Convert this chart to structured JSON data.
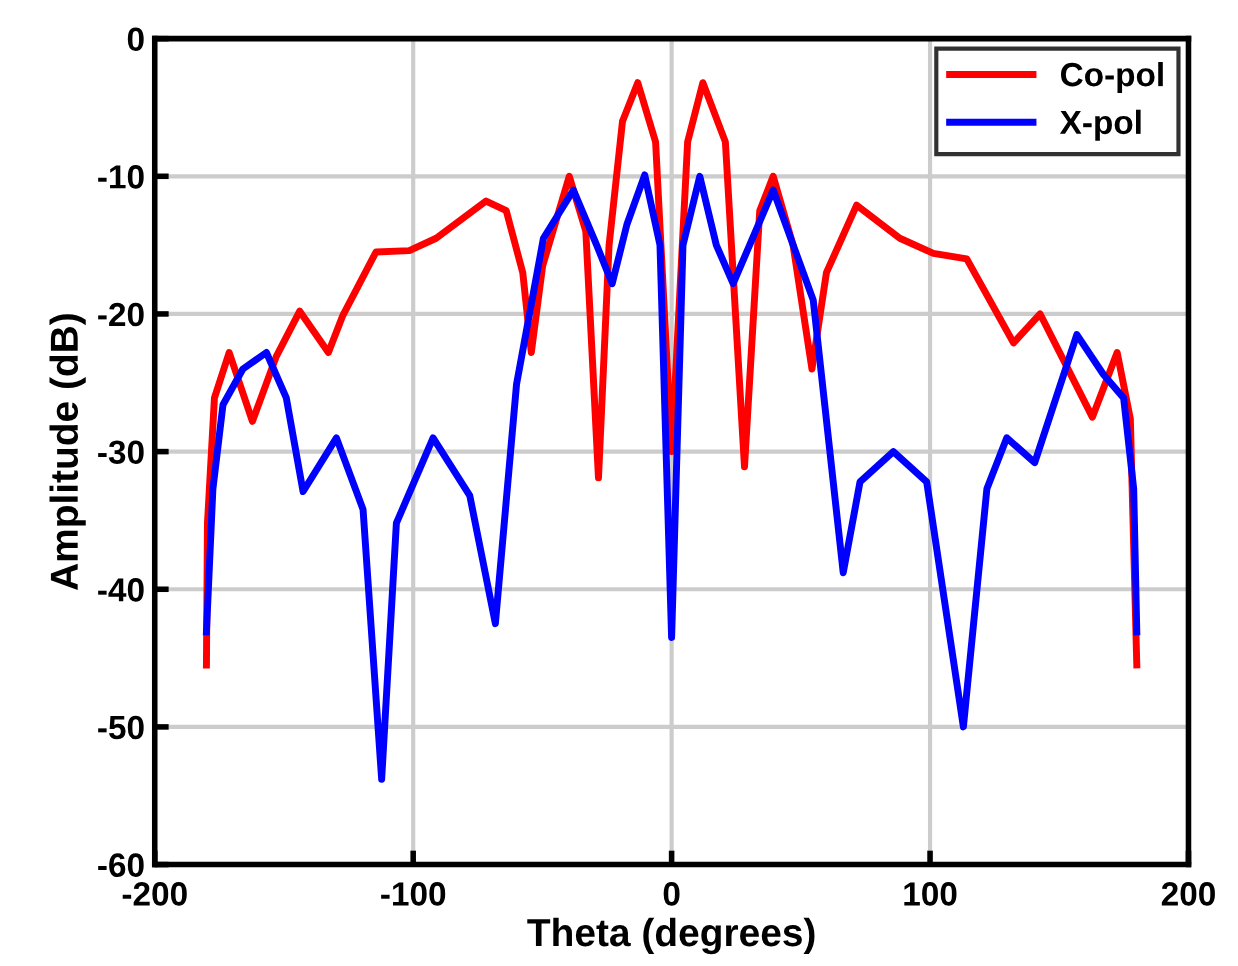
{
  "chart_data": {
    "type": "line",
    "xlabel": "Theta (degrees)",
    "ylabel": "Amplitude (dB)",
    "xlim": [
      -200,
      200
    ],
    "ylim": [
      -60,
      0
    ],
    "xticks": [
      -200,
      -100,
      0,
      100,
      200
    ],
    "yticks": [
      -60,
      -50,
      -40,
      -30,
      -20,
      -10,
      0
    ],
    "grid": true,
    "legend": "top right",
    "line_style": "solid",
    "marker": "none",
    "series": [
      {
        "name": "Co-pol",
        "color": "#ff0000",
        "x": [
          -180,
          -179.6,
          -176.9,
          -171.2,
          -162.2,
          -153,
          -143.9,
          -132.8,
          -127.2,
          -114.4,
          -101.5,
          -91.1,
          -71.8,
          -64,
          -57.6,
          -54.3,
          -49.9,
          -39.6,
          -33.2,
          -28.3,
          -24.2,
          -19,
          -13.1,
          -6.2,
          0,
          6.2,
          12.1,
          20.8,
          28.2,
          34.1,
          39.3,
          47,
          54.3,
          59.9,
          71.6,
          88.3,
          101.3,
          114.2,
          132.3,
          142.6,
          162.8,
          172.4,
          177.5,
          180
        ],
        "values": [
          -45.5,
          -35.2,
          -26.1,
          -22.8,
          -27.8,
          -23.1,
          -19.8,
          -22.8,
          -20.1,
          -15.5,
          -15.4,
          -14.5,
          -11.8,
          -12.5,
          -17,
          -22.8,
          -16.5,
          -10,
          -14,
          -31.9,
          -15,
          -6,
          -3.2,
          -7.5,
          -30,
          -7.5,
          -3.2,
          -7.5,
          -31.1,
          -12.5,
          -10,
          -15,
          -24,
          -17,
          -12.1,
          -14.5,
          -15.6,
          -16,
          -22.1,
          -20,
          -27.5,
          -22.8,
          -27.6,
          -45.5
        ]
      },
      {
        "name": "X-pol",
        "color": "#0000ff",
        "x": [
          -180,
          -177.5,
          -173.6,
          -165.9,
          -156.8,
          -149.1,
          -142.6,
          -129.7,
          -119.4,
          -112.2,
          -106.5,
          -92.3,
          -78.1,
          -68.2,
          -60,
          -49.6,
          -38,
          -29,
          -23,
          -17.3,
          -10.4,
          -4.5,
          0,
          4.4,
          10.9,
          17.3,
          23.8,
          39.3,
          54.8,
          66.4,
          72.9,
          85.8,
          98.7,
          112.9,
          122,
          129.7,
          140.5,
          156.8,
          167.1,
          174.9,
          178.8,
          180
        ],
        "values": [
          -43.1,
          -32.7,
          -26.6,
          -24,
          -22.8,
          -26.1,
          -32.9,
          -29,
          -34.2,
          -53.8,
          -35.2,
          -29,
          -33.2,
          -42.5,
          -25.1,
          -14.5,
          -11,
          -15,
          -17.8,
          -13.5,
          -9.9,
          -15,
          -43.5,
          -15,
          -10,
          -15,
          -17.8,
          -11,
          -19,
          -38.8,
          -32.2,
          -30,
          -32.2,
          -50,
          -32.7,
          -29,
          -30.8,
          -21.5,
          -24.4,
          -26.1,
          -32.7,
          -43.1
        ]
      }
    ]
  }
}
